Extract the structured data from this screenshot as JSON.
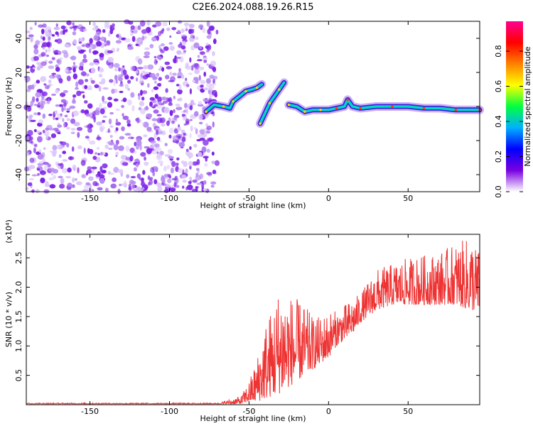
{
  "title": "C2E6.2024.088.19.26.R15",
  "chart_data": [
    {
      "type": "heatmap",
      "name": "spectrogram",
      "xlabel": "Height of straight line (km)",
      "ylabel": "Frequency (Hz)",
      "xlim": [
        -190,
        95
      ],
      "ylim": [
        -50,
        50
      ],
      "xticks": [
        -150,
        -100,
        -50,
        0,
        50
      ],
      "yticks": [
        -40,
        -20,
        0,
        20,
        40
      ],
      "colorbar": {
        "label": "Normalized spectral amplitude",
        "range": [
          0,
          0.97
        ],
        "ticks": [
          "0.0",
          "0.2",
          "0.4",
          "0.6",
          "0.8"
        ],
        "tick_values": [
          0.0,
          0.2,
          0.4,
          0.6,
          0.8
        ],
        "colormap": [
          "#ffffff",
          "#7a00e0",
          "#0000ff",
          "#00b0ff",
          "#00ff40",
          "#ffff00",
          "#ff8000",
          "#ff0000",
          "#ff0090"
        ]
      },
      "noise_region_x": [
        -190,
        -70
      ],
      "ridge": [
        {
          "x": -77,
          "y": -3
        },
        {
          "x": -72,
          "y": 1
        },
        {
          "x": -66,
          "y": 0
        },
        {
          "x": -62,
          "y": -1
        },
        {
          "x": -60,
          "y": 3
        },
        {
          "x": -56,
          "y": 6
        },
        {
          "x": -52,
          "y": 9
        },
        {
          "x": -48,
          "y": 10
        },
        {
          "x": -45,
          "y": 11
        },
        {
          "x": -42,
          "y": 13
        },
        {
          "x": -43,
          "y": -10
        },
        {
          "x": -40,
          "y": -4
        },
        {
          "x": -37,
          "y": 2
        },
        {
          "x": -34,
          "y": 6
        },
        {
          "x": -31,
          "y": 10
        },
        {
          "x": -28,
          "y": 14
        },
        {
          "x": -25,
          "y": 1
        },
        {
          "x": -20,
          "y": 0
        },
        {
          "x": -15,
          "y": -3
        },
        {
          "x": -10,
          "y": -2
        },
        {
          "x": -5,
          "y": -2
        },
        {
          "x": 0,
          "y": -2
        },
        {
          "x": 5,
          "y": -1
        },
        {
          "x": 10,
          "y": 0
        },
        {
          "x": 12,
          "y": 4
        },
        {
          "x": 15,
          "y": 0
        },
        {
          "x": 20,
          "y": -1
        },
        {
          "x": 30,
          "y": 0
        },
        {
          "x": 40,
          "y": 0
        },
        {
          "x": 50,
          "y": 0
        },
        {
          "x": 60,
          "y": -1
        },
        {
          "x": 70,
          "y": -1
        },
        {
          "x": 80,
          "y": -2
        },
        {
          "x": 90,
          "y": -2
        },
        {
          "x": 95,
          "y": -2
        }
      ]
    },
    {
      "type": "line",
      "name": "snr",
      "xlabel": "Height of straight line (km)",
      "ylabel": "SNR (10 * v/v)",
      "scale_label": "(x10⁴)",
      "xlim": [
        -190,
        95
      ],
      "ylim": [
        0,
        2.9
      ],
      "xticks": [
        -150,
        -100,
        -50,
        0,
        50
      ],
      "yticks": [
        0.5,
        1.0,
        1.5,
        2.0,
        2.5
      ],
      "color": "#ee3333",
      "envelope": {
        "x": [
          -190,
          -70,
          -55,
          -50,
          -45,
          -40,
          -35,
          -30,
          -25,
          -20,
          -15,
          -10,
          -5,
          0,
          5,
          10,
          15,
          20,
          25,
          30,
          40,
          50,
          60,
          70,
          80,
          90,
          95
        ],
        "low": [
          0.0,
          0.0,
          0.01,
          0.05,
          0.05,
          0.1,
          0.15,
          0.2,
          0.3,
          0.4,
          0.5,
          0.6,
          0.7,
          0.8,
          1.0,
          1.1,
          1.2,
          1.4,
          1.5,
          1.6,
          1.7,
          1.7,
          1.7,
          1.7,
          1.7,
          1.6,
          1.6
        ],
        "high": [
          0.03,
          0.03,
          0.15,
          0.4,
          0.8,
          1.4,
          1.7,
          2.1,
          1.9,
          1.8,
          1.7,
          1.5,
          1.5,
          1.6,
          1.6,
          1.7,
          1.8,
          1.9,
          2.1,
          2.3,
          2.4,
          2.5,
          2.55,
          2.6,
          2.75,
          2.85,
          2.6
        ]
      }
    }
  ]
}
